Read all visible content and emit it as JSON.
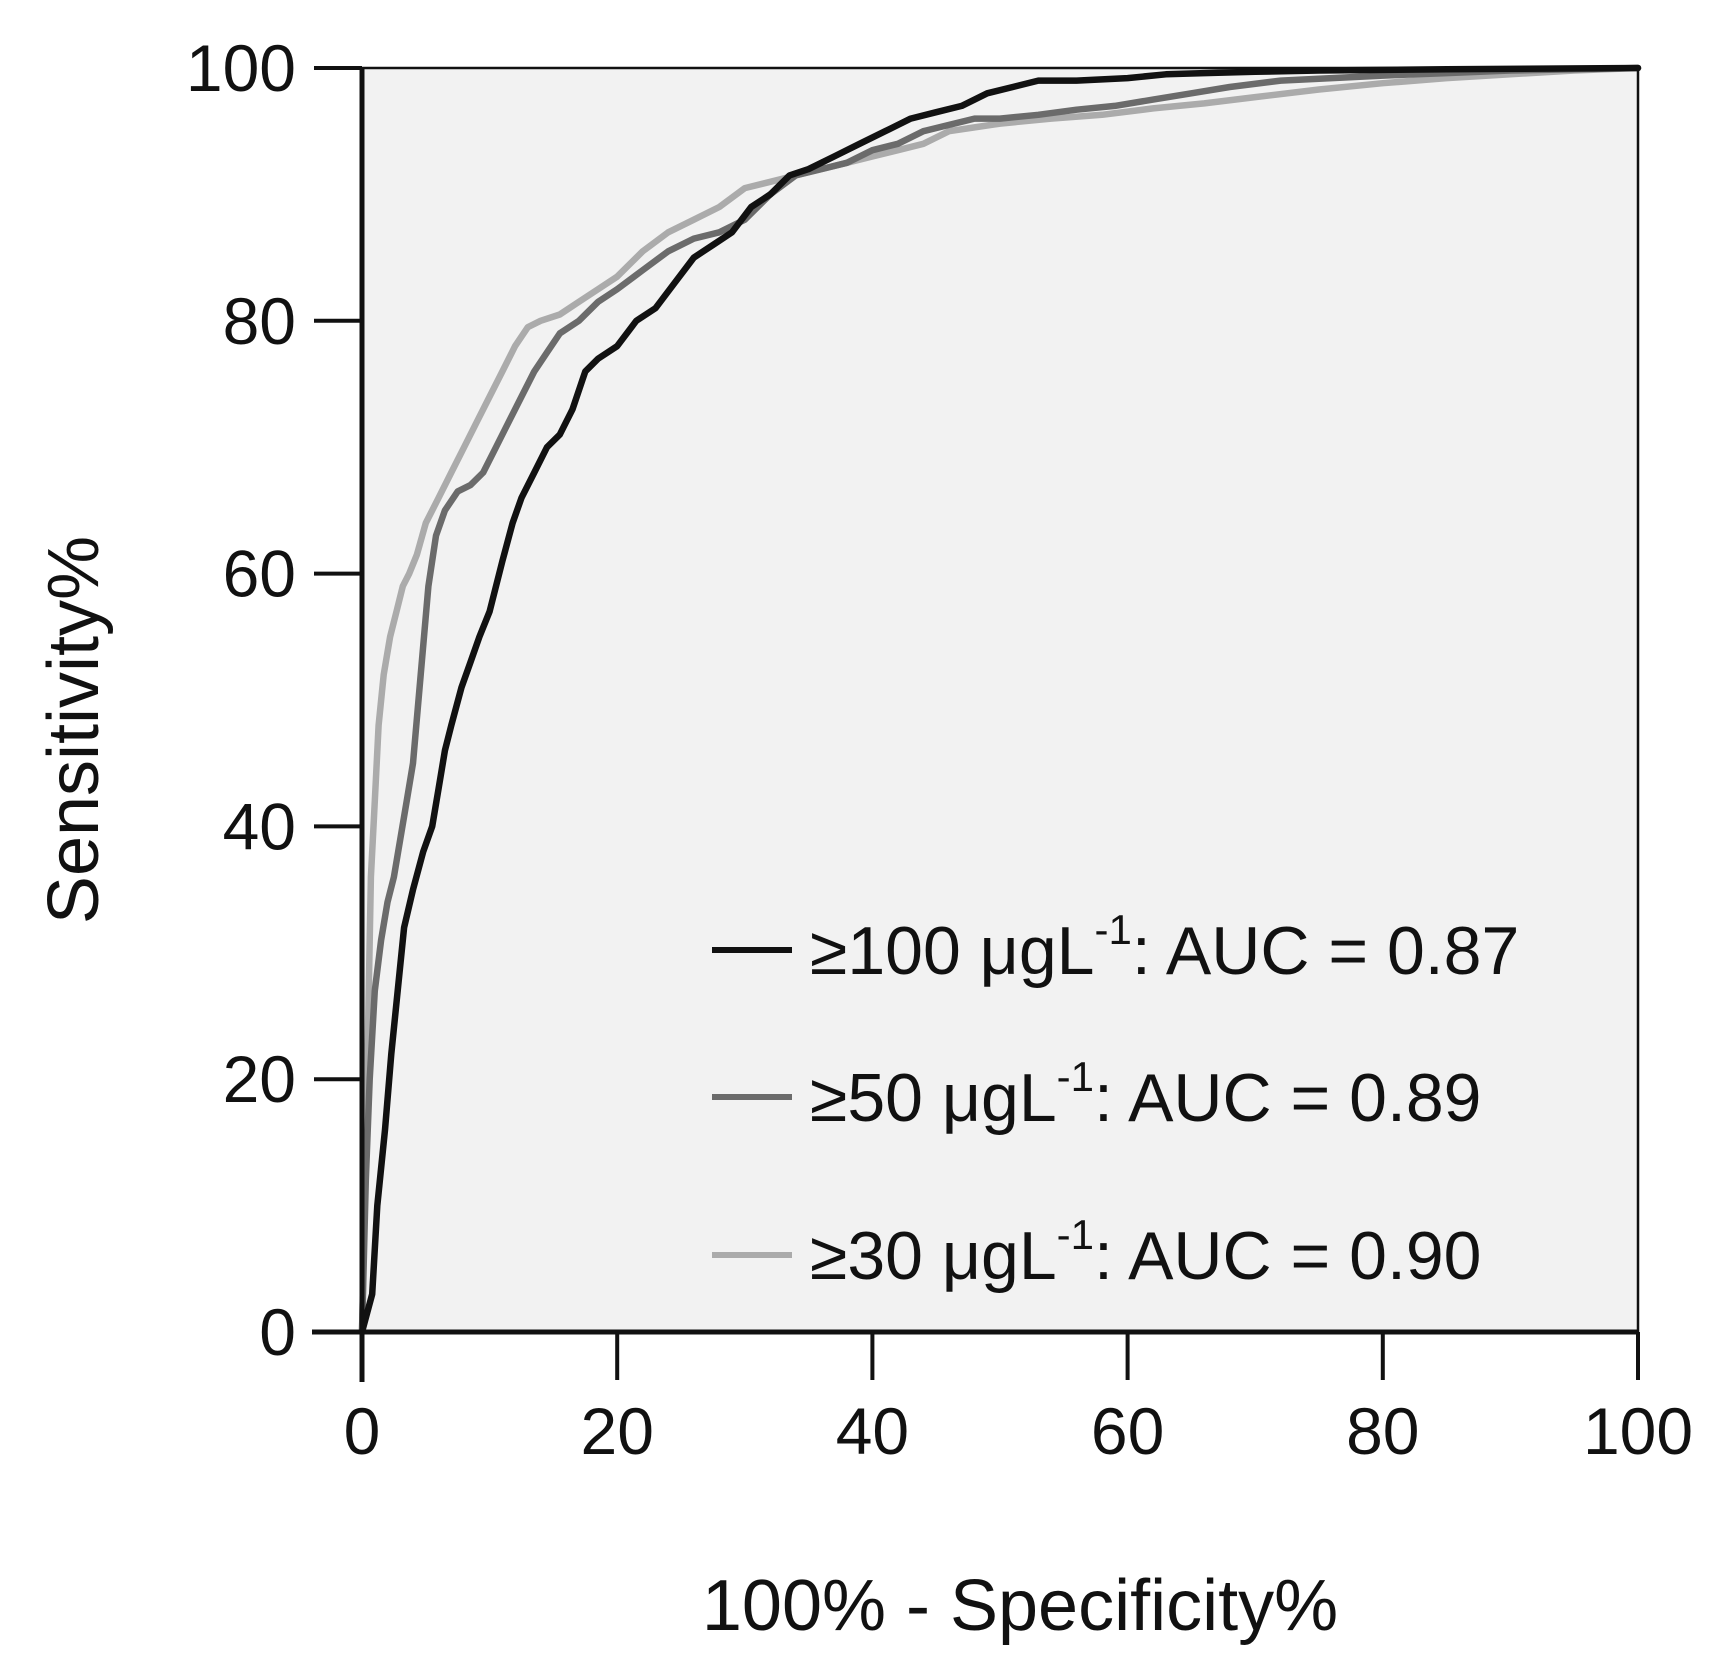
{
  "chart_data": {
    "type": "line",
    "title": "",
    "xlabel": "100% - Specificity%",
    "ylabel": "Sensitivity%",
    "xlim": [
      0,
      100
    ],
    "ylim": [
      0,
      100
    ],
    "xticks": [
      "0",
      "20",
      "40",
      "60",
      "80",
      "100"
    ],
    "yticks": [
      "0",
      "20",
      "40",
      "60",
      "80",
      "100"
    ],
    "grid": false,
    "plot_background": "#f2f2f2",
    "legend_position": "bottom-right",
    "series": [
      {
        "name": "≥100 μgL-1: AUC = 0.87",
        "label_prefix": "≥100 μgL",
        "label_sup": "-1",
        "label_suffix": ": AUC = 0.87",
        "color": "#111111",
        "x": [
          0,
          0.8,
          1.2,
          1.8,
          2.3,
          2.8,
          3.3,
          4.0,
          4.8,
          5.5,
          6.0,
          6.5,
          7.0,
          7.8,
          8.5,
          9.2,
          10.0,
          11.0,
          11.8,
          12.5,
          13.5,
          14.5,
          15.5,
          16.5,
          17.5,
          18.5,
          20.0,
          21.5,
          23.0,
          24.5,
          26.0,
          27.5,
          29.0,
          30.5,
          32.0,
          33.5,
          35.0,
          37.0,
          39.0,
          41.0,
          43.0,
          45.0,
          47.0,
          49.0,
          51.0,
          53.0,
          56.0,
          60.0,
          63.0,
          66.0,
          70.0,
          75.0,
          85.0,
          100
        ],
        "y": [
          0,
          3,
          10,
          16,
          22,
          27,
          32,
          35,
          38,
          40,
          43,
          46,
          48,
          51,
          53,
          55,
          57,
          61,
          64,
          66,
          68,
          70,
          71,
          73,
          76,
          77,
          78,
          80,
          81,
          83,
          85,
          86,
          87,
          89,
          90,
          91.5,
          92,
          93,
          94,
          95,
          96,
          96.5,
          97,
          98,
          98.5,
          99,
          99,
          99.2,
          99.5,
          99.6,
          99.7,
          99.8,
          99.9,
          100
        ]
      },
      {
        "name": "≥50 μgL-1: AUC = 0.89",
        "label_prefix": "≥50 μgL",
        "label_sup": "-1",
        "label_suffix": ": AUC = 0.89",
        "color": "#6b6b6b",
        "x": [
          0,
          0.3,
          0.6,
          1.0,
          1.5,
          2.0,
          2.5,
          3.0,
          3.5,
          4.0,
          4.6,
          5.2,
          5.8,
          6.5,
          7.5,
          8.5,
          9.5,
          10.5,
          11.5,
          12.5,
          13.5,
          14.5,
          15.5,
          17.0,
          18.5,
          20.0,
          22.0,
          24.0,
          26.0,
          28.0,
          30.0,
          32.0,
          34.0,
          36.0,
          38.0,
          40.0,
          42.0,
          44.0,
          46.0,
          48.0,
          50.0,
          53.0,
          56.0,
          59.0,
          62.0,
          65.0,
          68.0,
          72.0,
          76.0,
          80.0,
          85.0,
          90.0,
          100
        ],
        "y": [
          0,
          12,
          20,
          27,
          31,
          34,
          36,
          39,
          42,
          45,
          52,
          59,
          63,
          65,
          66.5,
          67,
          68,
          70,
          72,
          74,
          76,
          77.5,
          79,
          80,
          81.5,
          82.5,
          84,
          85.5,
          86.5,
          87,
          88,
          90,
          91.5,
          92,
          92.5,
          93.5,
          94,
          95,
          95.5,
          96,
          96,
          96.3,
          96.7,
          97,
          97.5,
          98,
          98.5,
          99,
          99.2,
          99.4,
          99.6,
          99.8,
          100
        ]
      },
      {
        "name": "≥30 μgL-1: AUC = 0.90",
        "label_prefix": "≥30 μgL",
        "label_sup": "-1",
        "label_suffix": ": AUC = 0.90",
        "color": "#ababab",
        "x": [
          0,
          0.2,
          0.4,
          0.7,
          1.0,
          1.3,
          1.7,
          2.2,
          2.7,
          3.2,
          3.7,
          4.3,
          5.0,
          6.0,
          7.0,
          8.0,
          9.0,
          10.0,
          11.0,
          12.0,
          13.0,
          14.0,
          15.5,
          17.0,
          18.5,
          20.0,
          22.0,
          24.0,
          26.0,
          28.0,
          30.0,
          32.0,
          34.0,
          36.0,
          38.0,
          40.0,
          42.0,
          44.0,
          46.0,
          48.0,
          50.0,
          54.0,
          58.0,
          62.0,
          66.0,
          70.0,
          75.0,
          80.0,
          85.0,
          90.0,
          95.0,
          100
        ],
        "y": [
          0,
          10,
          20,
          36,
          42,
          48,
          52,
          55,
          57,
          59,
          60,
          61.5,
          64,
          66,
          68,
          70,
          72,
          74,
          76,
          78,
          79.5,
          80,
          80.5,
          81.5,
          82.5,
          83.5,
          85.5,
          87,
          88,
          89,
          90.5,
          91,
          91.5,
          92,
          92.5,
          93,
          93.5,
          94,
          95,
          95.3,
          95.6,
          96,
          96.3,
          96.8,
          97.2,
          97.7,
          98.3,
          98.8,
          99.2,
          99.5,
          99.8,
          100
        ]
      }
    ]
  }
}
